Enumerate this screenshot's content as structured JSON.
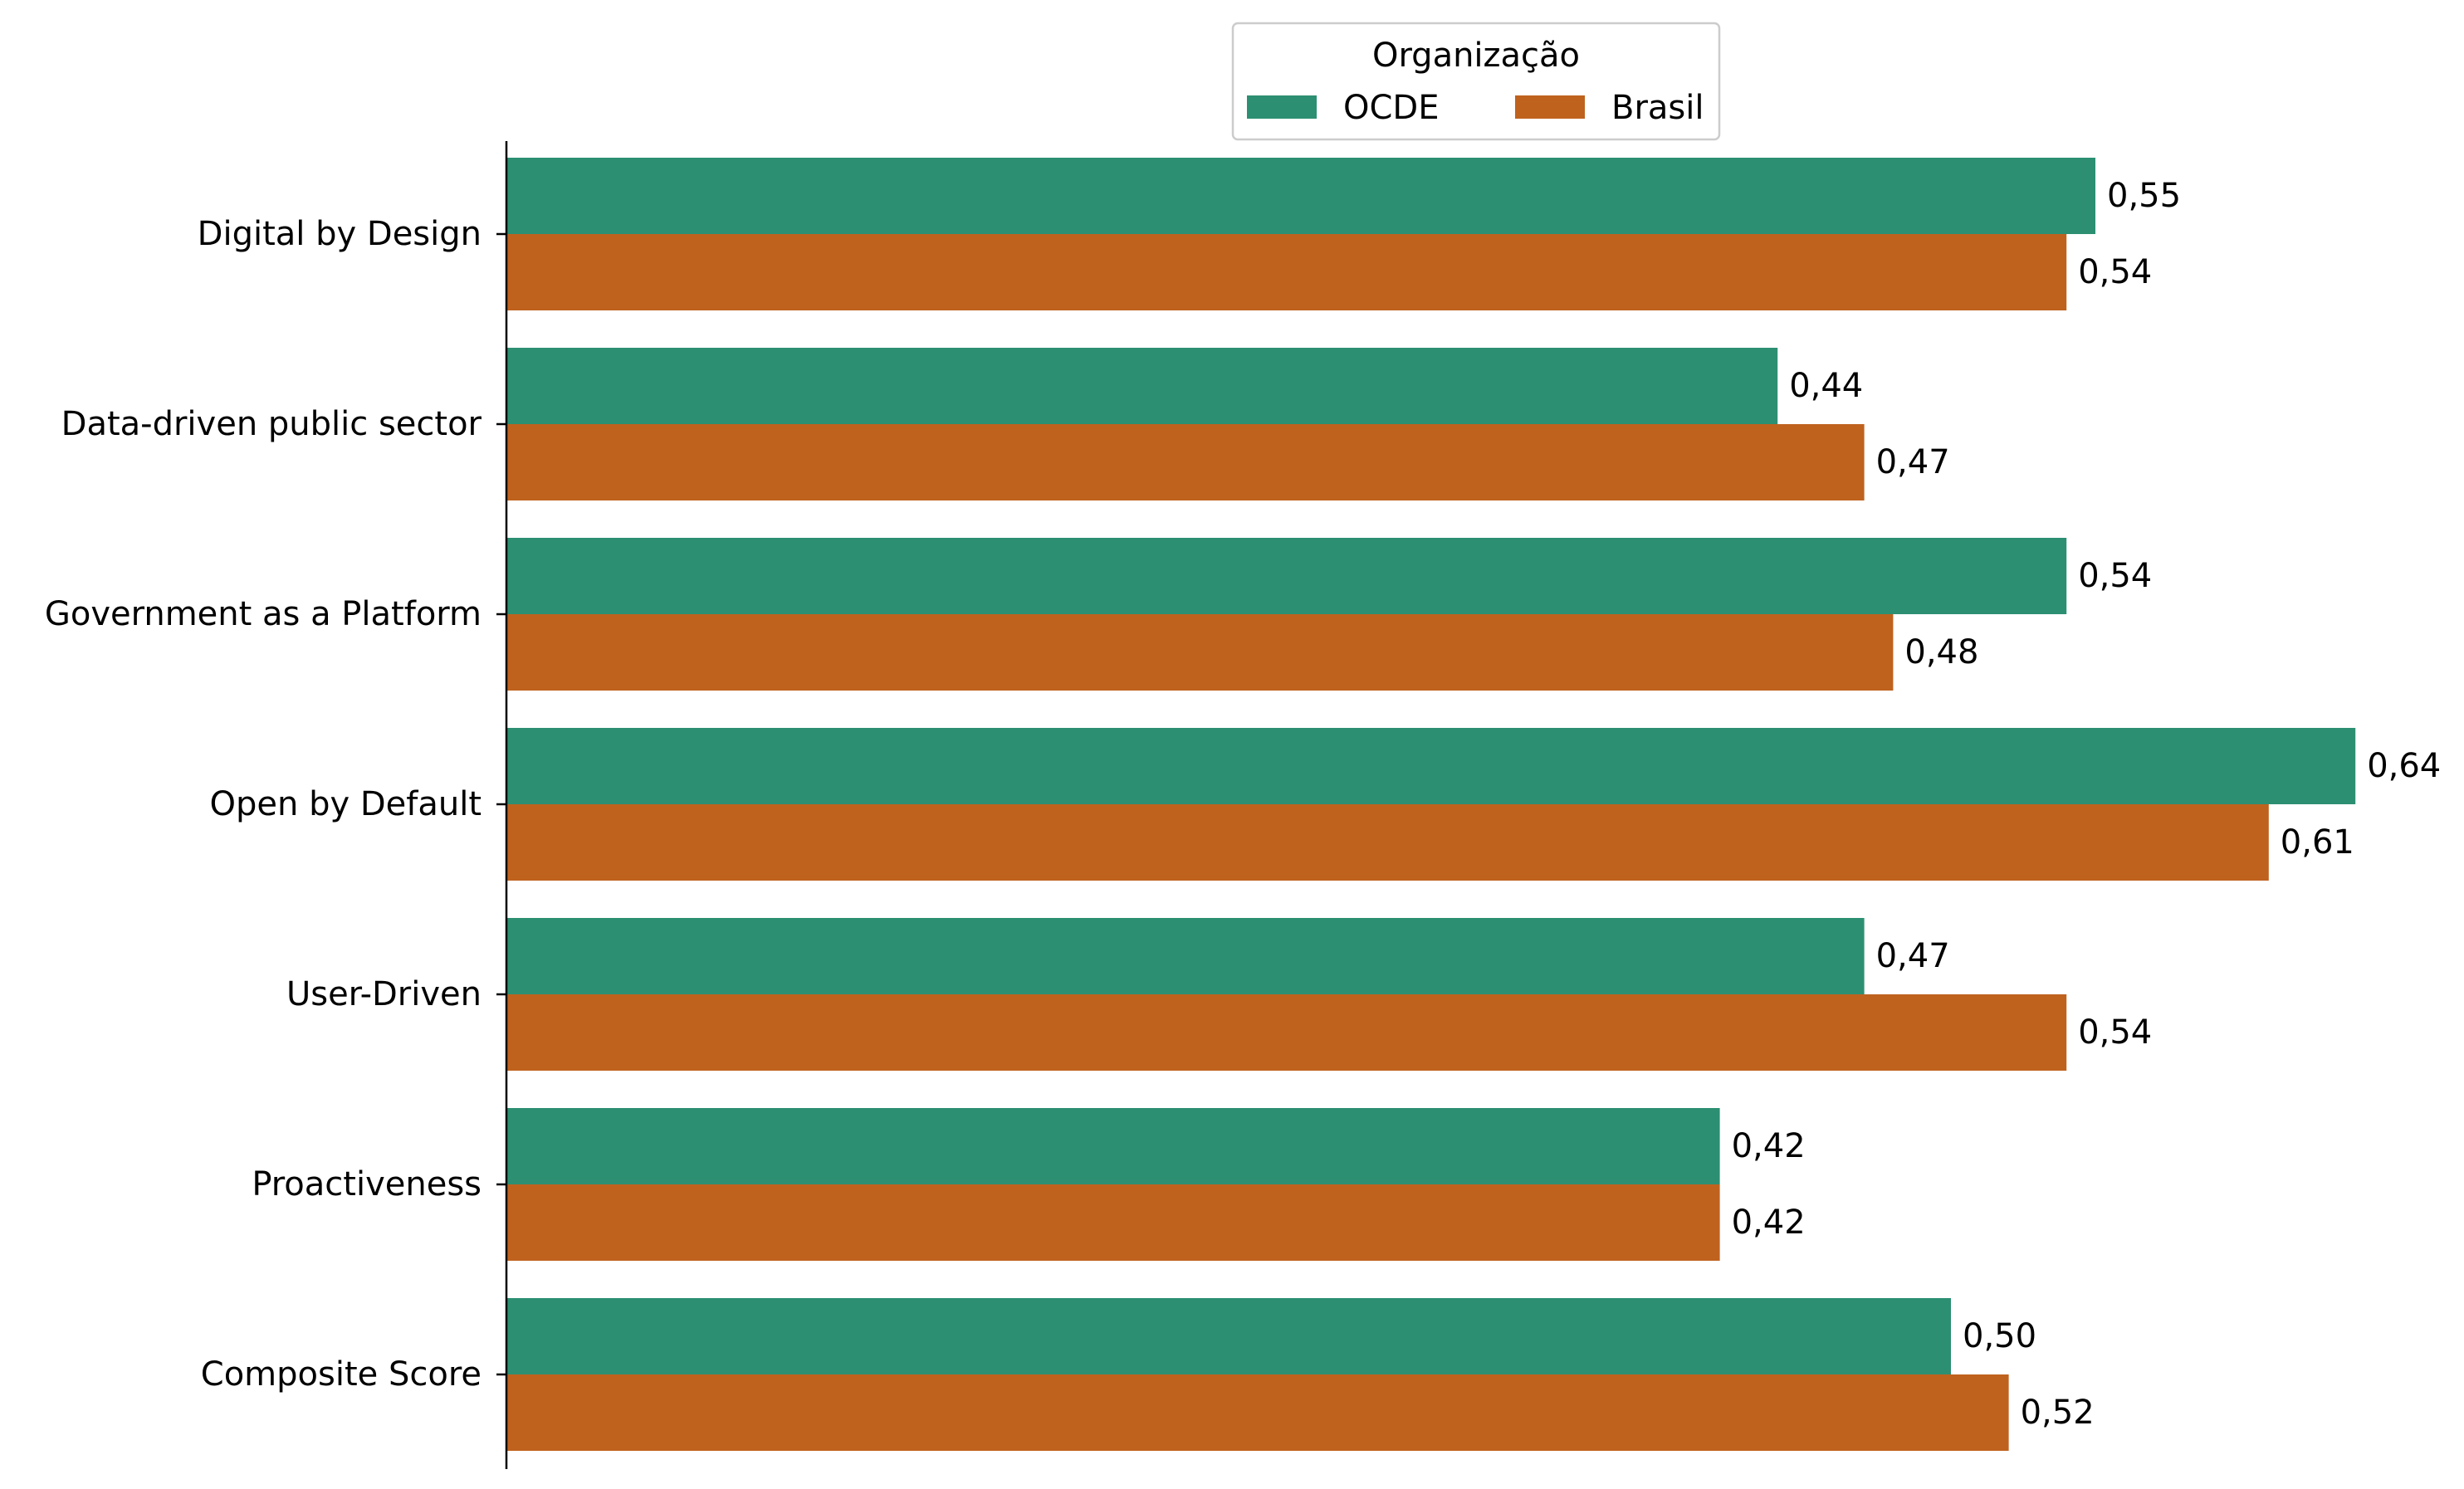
{
  "chart_data": {
    "type": "bar",
    "orientation": "horizontal",
    "categories": [
      "Digital by Design",
      "Data-driven public sector",
      "Government as a Platform",
      "Open by Default",
      "User-Driven",
      "Proactiveness",
      "Composite Score"
    ],
    "series": [
      {
        "name": "OCDE",
        "color": "#2c8f72",
        "values": [
          0.55,
          0.44,
          0.54,
          0.64,
          0.47,
          0.42,
          0.5
        ],
        "labels": [
          "0,55",
          "0,44",
          "0,54",
          "0,64",
          "0,47",
          "0,42",
          "0,50"
        ]
      },
      {
        "name": "Brasil",
        "color": "#bf621e",
        "values": [
          0.54,
          0.47,
          0.48,
          0.61,
          0.54,
          0.42,
          0.52
        ],
        "labels": [
          "0,54",
          "0,47",
          "0,48",
          "0,61",
          "0,54",
          "0,42",
          "0,52"
        ]
      }
    ],
    "xlim": [
      0,
      0.65
    ],
    "x_axis_visible": false,
    "grid": false,
    "legend": {
      "title": "Organização",
      "placement": "top-center",
      "columns": 2
    }
  }
}
